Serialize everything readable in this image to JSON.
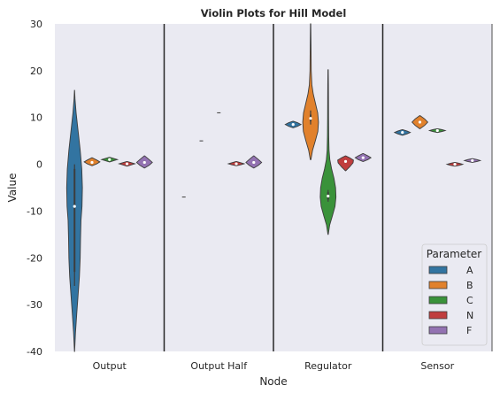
{
  "chart_data": {
    "type": "violin",
    "title": "Violin Plots for Hill Model",
    "xlabel": "Node",
    "ylabel": "Value",
    "ylim": [
      -40,
      30
    ],
    "yticks": [
      -40,
      -30,
      -20,
      -10,
      0,
      10,
      20,
      30
    ],
    "grid": false,
    "categories": [
      "Output",
      "Output Half",
      "Regulator",
      "Sensor"
    ],
    "legend": {
      "title": "Parameter",
      "position": "lower right"
    },
    "series": [
      {
        "name": "A",
        "color": "#3274a1",
        "values": [
          {
            "category": "Output",
            "min": -40,
            "max": 15.8,
            "q1": -23,
            "median": -9,
            "q3": -1,
            "whisker_low": -26,
            "whisker_high": 0,
            "density": [
              [
                -40,
                0.01
              ],
              [
                -36,
                0.12
              ],
              [
                -32,
                0.28
              ],
              [
                -28,
                0.45
              ],
              [
                -24,
                0.62
              ],
              [
                -20,
                0.72
              ],
              [
                -16,
                0.76
              ],
              [
                -12,
                0.82
              ],
              [
                -9,
                0.95
              ],
              [
                -5,
                1.0
              ],
              [
                -1,
                0.92
              ],
              [
                3,
                0.72
              ],
              [
                7,
                0.46
              ],
              [
                11,
                0.2
              ],
              [
                14,
                0.06
              ],
              [
                15.8,
                0.01
              ]
            ]
          },
          {
            "category": "Output Half",
            "single": -7
          },
          {
            "category": "Regulator",
            "min": 7.8,
            "max": 9.2,
            "median": 8.5,
            "q1": 8.4,
            "q3": 8.6,
            "density": [
              [
                7.8,
                0.02
              ],
              [
                8.1,
                0.55
              ],
              [
                8.5,
                1.0
              ],
              [
                8.9,
                0.55
              ],
              [
                9.2,
                0.02
              ]
            ]
          },
          {
            "category": "Sensor",
            "min": 6.2,
            "max": 7.4,
            "median": 6.8,
            "q1": 6.7,
            "q3": 6.9,
            "density": [
              [
                6.2,
                0.02
              ],
              [
                6.5,
                0.6
              ],
              [
                6.8,
                1.0
              ],
              [
                7.1,
                0.6
              ],
              [
                7.4,
                0.02
              ]
            ]
          }
        ]
      },
      {
        "name": "B",
        "color": "#e1812c",
        "values": [
          {
            "category": "Output",
            "min": -0.3,
            "max": 1.4,
            "median": 0.4,
            "q1": 0.2,
            "q3": 0.6,
            "density": [
              [
                -0.3,
                0.02
              ],
              [
                0.1,
                0.6
              ],
              [
                0.5,
                1.0
              ],
              [
                0.9,
                0.6
              ],
              [
                1.4,
                0.02
              ]
            ]
          },
          {
            "category": "Output Half",
            "single": 5
          },
          {
            "category": "Regulator",
            "min": 1,
            "max": 30,
            "median": 9.8,
            "q1": 9.2,
            "q3": 10.6,
            "whisker_low": 8.5,
            "whisker_high": 11.5,
            "density": [
              [
                1,
                0.04
              ],
              [
                3,
                0.25
              ],
              [
                5,
                0.6
              ],
              [
                7,
                0.92
              ],
              [
                9,
                1.0
              ],
              [
                11,
                0.9
              ],
              [
                13,
                0.62
              ],
              [
                15,
                0.34
              ],
              [
                17,
                0.16
              ],
              [
                20,
                0.08
              ],
              [
                24,
                0.06
              ],
              [
                27,
                0.04
              ],
              [
                30,
                0.02
              ]
            ]
          },
          {
            "category": "Sensor",
            "min": 7.6,
            "max": 10.4,
            "median": 9,
            "q1": 8.7,
            "q3": 9.3,
            "density": [
              [
                7.6,
                0.02
              ],
              [
                8.3,
                0.6
              ],
              [
                9,
                1.0
              ],
              [
                9.7,
                0.6
              ],
              [
                10.4,
                0.02
              ]
            ]
          }
        ]
      },
      {
        "name": "C",
        "color": "#3a923a",
        "values": [
          {
            "category": "Output",
            "min": 0.5,
            "max": 1.5,
            "median": 1,
            "q1": 0.9,
            "q3": 1.1,
            "density": [
              [
                0.5,
                0.02
              ],
              [
                0.8,
                0.6
              ],
              [
                1,
                1.0
              ],
              [
                1.2,
                0.6
              ],
              [
                1.5,
                0.02
              ]
            ]
          },
          {
            "category": "Output Half",
            "single": 11
          },
          {
            "category": "Regulator",
            "min": -15,
            "max": 20.2,
            "median": -6.8,
            "q1": -7.5,
            "q3": -6,
            "whisker_low": -8,
            "whisker_high": -5.5,
            "density": [
              [
                -15,
                0.02
              ],
              [
                -13,
                0.2
              ],
              [
                -11,
                0.55
              ],
              [
                -9,
                0.88
              ],
              [
                -7,
                1.0
              ],
              [
                -5,
                0.95
              ],
              [
                -3,
                0.75
              ],
              [
                -1,
                0.45
              ],
              [
                1,
                0.22
              ],
              [
                3,
                0.12
              ],
              [
                6,
                0.08
              ],
              [
                10,
                0.06
              ],
              [
                14,
                0.05
              ],
              [
                17,
                0.04
              ],
              [
                20.2,
                0.02
              ]
            ]
          },
          {
            "category": "Sensor",
            "min": 6.8,
            "max": 7.6,
            "median": 7.2,
            "q1": 7.1,
            "q3": 7.3,
            "density": [
              [
                6.8,
                0.02
              ],
              [
                7,
                0.6
              ],
              [
                7.2,
                1.0
              ],
              [
                7.4,
                0.6
              ],
              [
                7.6,
                0.02
              ]
            ]
          }
        ]
      },
      {
        "name": "N",
        "color": "#c03d3e",
        "values": [
          {
            "category": "Output",
            "min": -0.4,
            "max": 0.6,
            "median": 0.1,
            "q1": 0,
            "q3": 0.2,
            "density": [
              [
                -0.4,
                0.02
              ],
              [
                -0.1,
                0.6
              ],
              [
                0.1,
                1.0
              ],
              [
                0.3,
                0.6
              ],
              [
                0.6,
                0.02
              ]
            ]
          },
          {
            "category": "Output Half",
            "min": -0.3,
            "max": 0.6,
            "median": 0.1,
            "q1": 0,
            "q3": 0.2,
            "density": [
              [
                -0.3,
                0.02
              ],
              [
                -0.1,
                0.6
              ],
              [
                0.1,
                1.0
              ],
              [
                0.3,
                0.6
              ],
              [
                0.6,
                0.02
              ]
            ]
          },
          {
            "category": "Regulator",
            "min": -1.4,
            "max": 1.8,
            "median": 0.6,
            "q1": 0.3,
            "q3": 0.9,
            "density": [
              [
                -1.4,
                0.02
              ],
              [
                -0.6,
                0.5
              ],
              [
                0.3,
                0.95
              ],
              [
                0.9,
                1.0
              ],
              [
                1.4,
                0.5
              ],
              [
                1.8,
                0.02
              ]
            ]
          },
          {
            "category": "Sensor",
            "min": -0.4,
            "max": 0.4,
            "median": 0,
            "q1": -0.1,
            "q3": 0.1,
            "density": [
              [
                -0.4,
                0.02
              ],
              [
                -0.2,
                0.6
              ],
              [
                0,
                1.0
              ],
              [
                0.2,
                0.6
              ],
              [
                0.4,
                0.02
              ]
            ]
          }
        ]
      },
      {
        "name": "F",
        "color": "#9372b2",
        "values": [
          {
            "category": "Output",
            "min": -0.8,
            "max": 1.8,
            "median": 0.4,
            "q1": 0.1,
            "q3": 0.7,
            "density": [
              [
                -0.8,
                0.02
              ],
              [
                -0.2,
                0.6
              ],
              [
                0.4,
                1.0
              ],
              [
                1,
                0.6
              ],
              [
                1.8,
                0.02
              ]
            ]
          },
          {
            "category": "Output Half",
            "min": -0.8,
            "max": 1.8,
            "median": 0.4,
            "q1": 0.1,
            "q3": 0.7,
            "density": [
              [
                -0.8,
                0.02
              ],
              [
                -0.2,
                0.6
              ],
              [
                0.4,
                1.0
              ],
              [
                1,
                0.6
              ],
              [
                1.8,
                0.02
              ]
            ]
          },
          {
            "category": "Regulator",
            "min": 0.6,
            "max": 2.3,
            "median": 1.4,
            "q1": 1.2,
            "q3": 1.6,
            "density": [
              [
                0.6,
                0.02
              ],
              [
                1,
                0.6
              ],
              [
                1.4,
                1.0
              ],
              [
                1.8,
                0.6
              ],
              [
                2.3,
                0.02
              ]
            ]
          },
          {
            "category": "Sensor",
            "min": 0.4,
            "max": 1.2,
            "median": 0.8,
            "q1": 0.7,
            "q3": 0.9,
            "density": [
              [
                0.4,
                0.02
              ],
              [
                0.6,
                0.6
              ],
              [
                0.8,
                1.0
              ],
              [
                1,
                0.6
              ],
              [
                1.2,
                0.02
              ]
            ]
          }
        ]
      }
    ]
  }
}
